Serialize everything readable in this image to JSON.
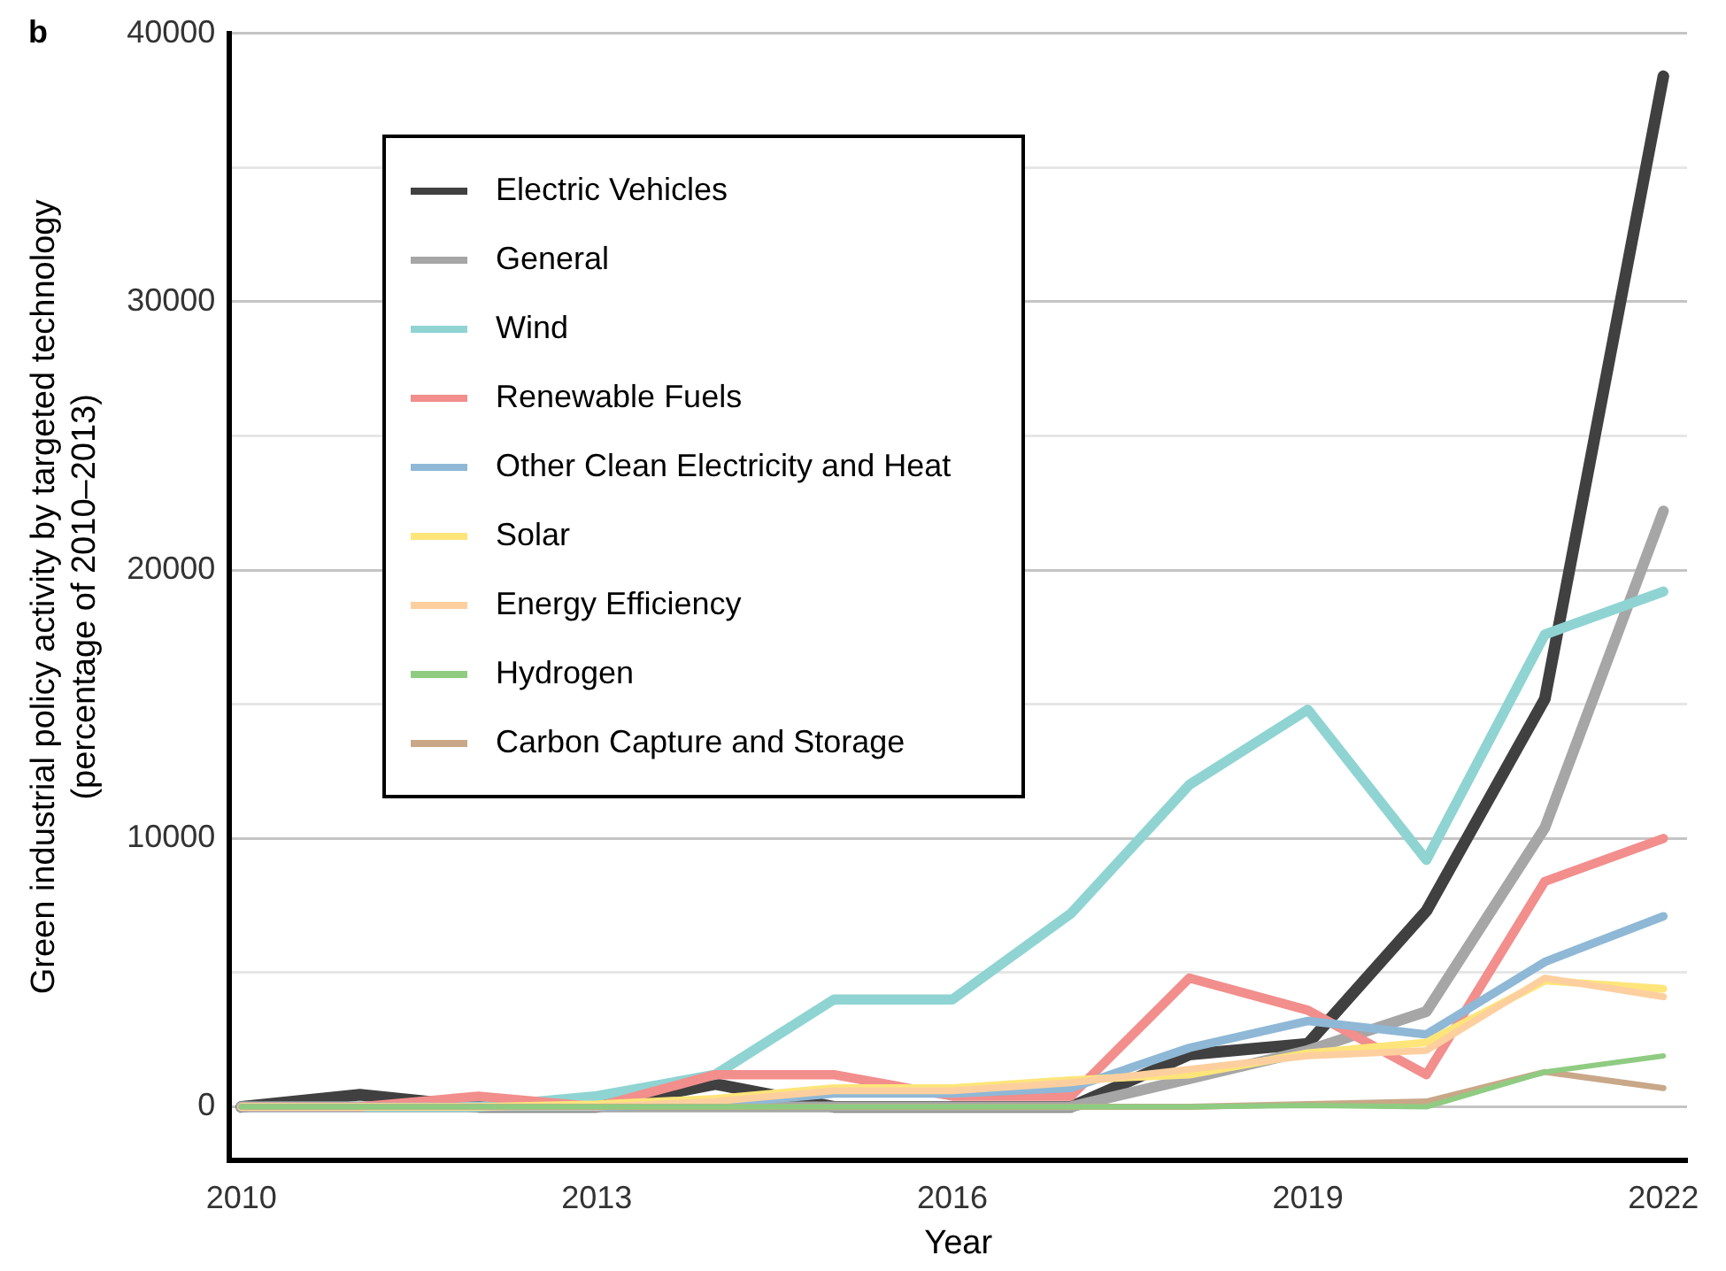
{
  "chart_data": {
    "type": "line",
    "xlabel": "Year",
    "ylabel": "Green industrial policy activity by targeted technology\n(percentage of 2010–2013)",
    "annotations": [
      "b"
    ],
    "x": [
      2010,
      2011,
      2012,
      2013,
      2014,
      2015,
      2016,
      2017,
      2018,
      2019,
      2020,
      2021,
      2022
    ],
    "xlim": [
      2009.9,
      2022.2
    ],
    "xticks": [
      2010,
      2013,
      2016,
      2019,
      2022
    ],
    "ylim": [
      -2000,
      40000
    ],
    "yticks": [
      0,
      {
        "value": 5000,
        "label": null
      },
      10000,
      {
        "value": 15000,
        "label": null
      },
      20000,
      {
        "value": 25000,
        "label": null
      },
      30000,
      {
        "value": 35000,
        "label": null
      },
      40000
    ],
    "grid": "y",
    "legend": "top left",
    "line_style": "solid",
    "marker": "none",
    "series": [
      {
        "name": "Electric Vehicles",
        "color": "#404040",
        "values": [
          0,
          450,
          0,
          0,
          850,
          0,
          0,
          0,
          1950,
          2350,
          7300,
          15200,
          38400
        ]
      },
      {
        "name": "General",
        "color": "#a6a6a6",
        "values": [
          0,
          0,
          0,
          0,
          0,
          0,
          0,
          0,
          1050,
          2100,
          3550,
          10400,
          22200
        ]
      },
      {
        "name": "Wind",
        "color": "#8fd4d3",
        "values": [
          0,
          0,
          0,
          400,
          1200,
          4000,
          4000,
          7200,
          12000,
          14800,
          9200,
          17600,
          19200
        ]
      },
      {
        "name": "Renewable Fuels",
        "color": "#f28e8c",
        "values": [
          0,
          0,
          400,
          0,
          1200,
          1200,
          400,
          400,
          4800,
          3600,
          1200,
          8400,
          10000
        ]
      },
      {
        "name": "Other Clean Electricity and Heat",
        "color": "#8fb8d6",
        "values": [
          0,
          0,
          0,
          0,
          100,
          500,
          500,
          700,
          2200,
          3200,
          2700,
          5400,
          7100
        ]
      },
      {
        "name": "Solar",
        "color": "#fde57a",
        "values": [
          0,
          0,
          0,
          100,
          300,
          700,
          700,
          1000,
          1200,
          2000,
          2400,
          4700,
          4400
        ]
      },
      {
        "name": "Energy Efficiency",
        "color": "#fdcf9f",
        "values": [
          0,
          0,
          0,
          0,
          200,
          600,
          600,
          900,
          1400,
          1900,
          2100,
          4800,
          4100
        ]
      },
      {
        "name": "Hydrogen",
        "color": "#8fcc82",
        "values": [
          0,
          0,
          0,
          0,
          0,
          0,
          0,
          0,
          0,
          50,
          0,
          1300,
          1900
        ]
      },
      {
        "name": "Carbon Capture and Storage",
        "color": "#c8a888",
        "values": [
          0,
          0,
          0,
          0,
          0,
          0,
          0,
          0,
          0,
          100,
          200,
          1300,
          700
        ]
      }
    ]
  }
}
